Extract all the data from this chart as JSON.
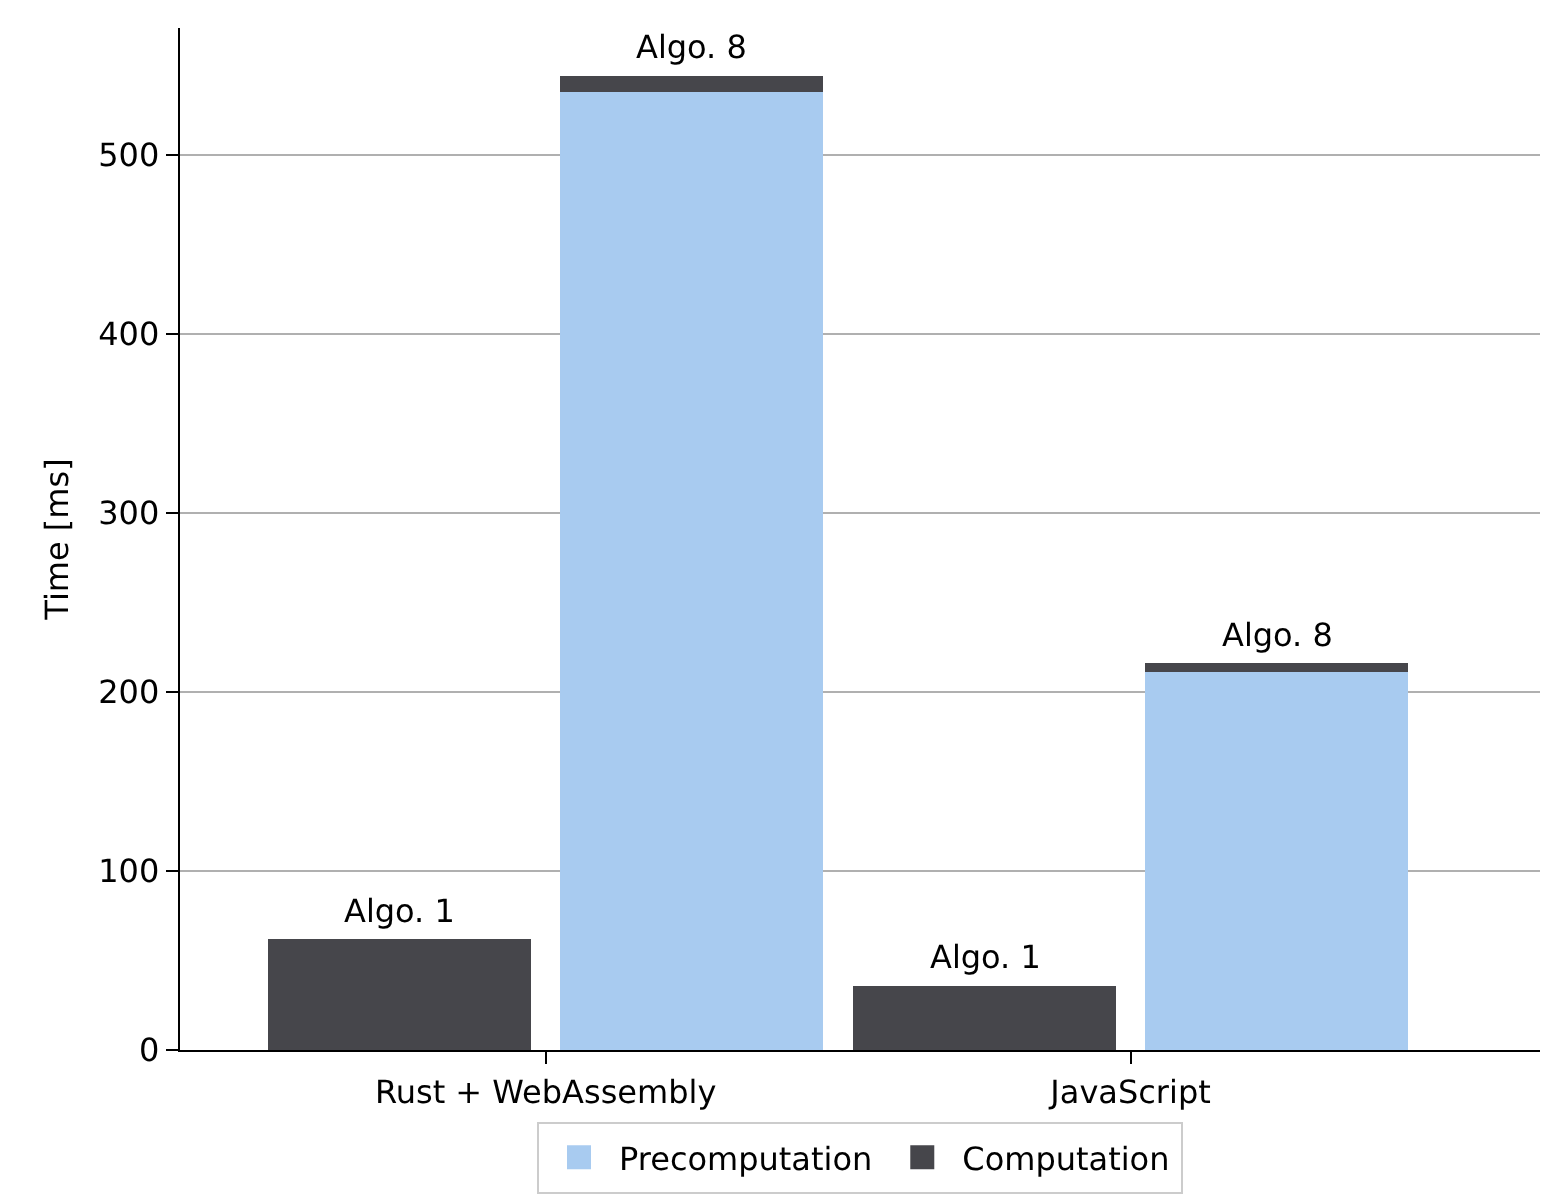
{
  "chart_data": {
    "type": "bar",
    "ylabel": "Time [ms]",
    "stacked": true,
    "categories": [
      "Rust + WebAssembly",
      null,
      "JavaScript",
      null
    ],
    "ylim": [
      0,
      571
    ],
    "yticks": [
      0,
      100,
      200,
      300,
      400,
      500
    ],
    "series": [
      {
        "name": "Precomputation",
        "color": "#a8cbf0",
        "values": [
          null,
          535,
          null,
          211
        ]
      },
      {
        "name": "Computation",
        "color": "#46464b",
        "values": [
          62,
          9,
          36,
          5
        ]
      }
    ],
    "annotations": [
      {
        "text": "Algo. 1",
        "y": 62
      },
      {
        "text": "Algo. 8",
        "y": 544
      },
      {
        "text": "Algo. 1",
        "y": 36
      },
      {
        "text": "Algo. 8",
        "y": 216
      }
    ],
    "grid": "y",
    "legend": "bottom"
  }
}
